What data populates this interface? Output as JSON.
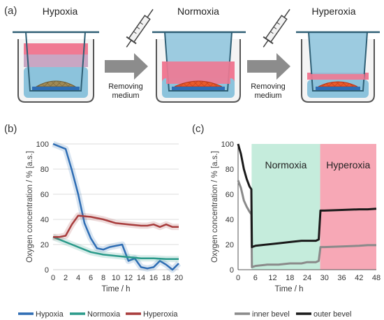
{
  "panel_a": {
    "label": "(a)",
    "titles": [
      "Hypoxia",
      "Normoxia",
      "Hyperoxia"
    ],
    "arrow_label_1": "Removing medium",
    "arrow_label_2": "Removing medium"
  },
  "panel_b": {
    "label": "(b)"
  },
  "panel_c": {
    "label": "(c)",
    "region_normoxia": "Normoxia",
    "region_hyperoxia": "Hyperoxia"
  },
  "colors": {
    "hypoxia": "#2e6db4",
    "normoxia": "#2a9a8a",
    "hyperoxia": "#a83c3c",
    "inner_bevel": "#8a8a8a",
    "outer_bevel": "#1a1a1a",
    "medium_blue": "#8cc3dc",
    "medium_pink": "#f07a93",
    "region_green": "#c5ecdc",
    "region_pink": "#f7a8b6"
  },
  "chart_data": [
    {
      "type": "line",
      "panel": "(b)",
      "xlabel": "Time / h",
      "ylabel": "Oxygen concentration / % [a.s.]",
      "xlim": [
        0,
        20
      ],
      "ylim": [
        0,
        100
      ],
      "xticks": [
        "0",
        "2",
        "4",
        "6",
        "8",
        "10",
        "12",
        "14",
        "16",
        "18",
        "20"
      ],
      "yticks": [
        "0",
        "20",
        "40",
        "60",
        "80",
        "100"
      ],
      "legend_position": "bottom",
      "series": [
        {
          "name": "Hypoxia",
          "x": [
            0,
            2,
            3,
            4,
            5,
            6,
            7,
            8,
            9,
            10,
            11,
            12,
            13,
            14,
            15,
            16,
            17,
            18,
            19,
            20
          ],
          "y": [
            100,
            96,
            79,
            60,
            37,
            25,
            17,
            16,
            18,
            19,
            20,
            7,
            9,
            2,
            1,
            2,
            7,
            4,
            0,
            5
          ]
        },
        {
          "name": "Normoxia",
          "x": [
            0,
            2,
            4,
            6,
            8,
            10,
            12,
            14,
            16,
            18,
            20
          ],
          "y": [
            26,
            22,
            18,
            14,
            12,
            11,
            10,
            9,
            9,
            8.5,
            8.5
          ]
        },
        {
          "name": "Hyperoxia",
          "x": [
            0,
            1,
            2,
            3,
            4,
            6,
            8,
            10,
            12,
            14,
            15,
            16,
            17,
            18,
            19,
            20
          ],
          "y": [
            26,
            26,
            27,
            36,
            43,
            42,
            40,
            37,
            36,
            35,
            35,
            36,
            34,
            36,
            34,
            34
          ]
        }
      ]
    },
    {
      "type": "line",
      "panel": "(c)",
      "xlabel": "Time / h",
      "ylabel": "Oxygen concentration / % [a.s.]",
      "xlim": [
        0,
        48
      ],
      "ylim": [
        0,
        100
      ],
      "xticks": [
        "0",
        "6",
        "12",
        "18",
        "24",
        "30",
        "36",
        "42",
        "48"
      ],
      "yticks": [
        "0",
        "20",
        "40",
        "60",
        "80",
        "100"
      ],
      "regions": [
        {
          "label": "Normoxia",
          "from": 4.7,
          "to": 28.5
        },
        {
          "label": "Hyperoxia",
          "from": 28.5,
          "to": 48
        }
      ],
      "legend_position": "bottom",
      "series": [
        {
          "name": "inner bevel",
          "x": [
            0,
            1,
            2,
            3,
            4,
            4.6,
            4.8,
            6,
            10,
            14,
            18,
            22,
            24,
            26,
            27,
            28,
            28.6,
            30,
            36,
            42,
            45,
            48
          ],
          "y": [
            71,
            65,
            55,
            50,
            46,
            44,
            2,
            3,
            4,
            4,
            5,
            5,
            6,
            6,
            6,
            7,
            18,
            18,
            18.5,
            19,
            19.5,
            19.5
          ]
        },
        {
          "name": "outer bevel",
          "x": [
            0,
            1,
            2,
            3,
            4,
            4.6,
            4.8,
            6,
            10,
            14,
            18,
            22,
            24,
            26,
            27,
            28,
            28.6,
            30,
            36,
            42,
            45,
            48
          ],
          "y": [
            100,
            92,
            80,
            72,
            66,
            64,
            18,
            19,
            20,
            21,
            22,
            23,
            23,
            23,
            23,
            24,
            47,
            47,
            47.5,
            48,
            48,
            48.5
          ]
        }
      ]
    }
  ]
}
